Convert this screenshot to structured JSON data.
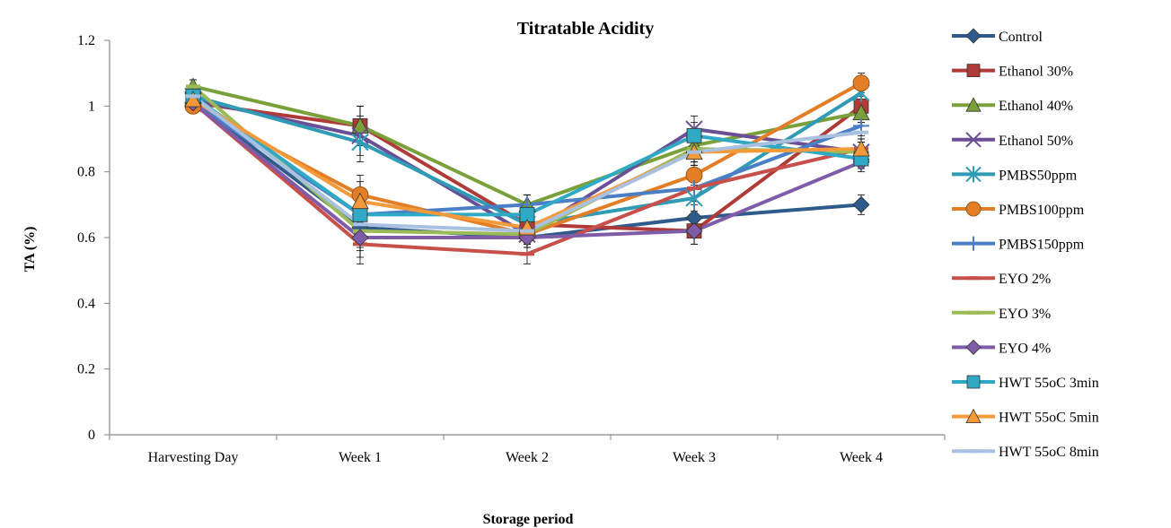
{
  "chart_data": {
    "type": "line",
    "title": "Titratable Acidity",
    "xlabel": "Storage period",
    "ylabel": "TA (%)",
    "ylim": [
      0,
      1.2
    ],
    "yticks": [
      "0",
      "0.2",
      "0.4",
      "0.6",
      "0.8",
      "1",
      "1.2"
    ],
    "categories": [
      "Harvesting Day",
      "Week 1",
      "Week 2",
      "Week 3",
      "Week 4"
    ],
    "legend_position": "right",
    "error_bars": true,
    "series": [
      {
        "name": "Control",
        "color": "#2e5b8c",
        "marker": "diamond",
        "values": [
          1.01,
          0.63,
          0.6,
          0.66,
          0.7
        ]
      },
      {
        "name": "Ethanol 30%",
        "color": "#b03a37",
        "marker": "square",
        "values": [
          1.01,
          0.94,
          0.64,
          0.62,
          1.0
        ]
      },
      {
        "name": "Ethanol 40%",
        "color": "#7aa03a",
        "marker": "triangle",
        "values": [
          1.06,
          0.94,
          0.7,
          0.88,
          0.98
        ]
      },
      {
        "name": "Ethanol 50%",
        "color": "#6a4f96",
        "marker": "x",
        "values": [
          1.02,
          0.91,
          0.61,
          0.93,
          0.86
        ]
      },
      {
        "name": "PMBS50ppm",
        "color": "#2f9bb5",
        "marker": "star",
        "values": [
          1.03,
          0.89,
          0.64,
          0.72,
          1.04
        ]
      },
      {
        "name": "PMBS100ppm",
        "color": "#e37e26",
        "marker": "circle",
        "values": [
          1.0,
          0.73,
          0.61,
          0.79,
          1.07
        ]
      },
      {
        "name": "PMBS150ppm",
        "color": "#4a7ec6",
        "marker": "plus",
        "values": [
          1.01,
          0.67,
          0.7,
          0.75,
          0.94
        ]
      },
      {
        "name": "EYO 2%",
        "color": "#c8504b",
        "marker": "dash",
        "values": [
          1.01,
          0.58,
          0.55,
          0.75,
          0.87
        ]
      },
      {
        "name": "EYO 3%",
        "color": "#9bbb59",
        "marker": "dash",
        "values": [
          1.06,
          0.62,
          0.61,
          0.87,
          0.86
        ]
      },
      {
        "name": "EYO 4%",
        "color": "#7f5ca8",
        "marker": "diamond",
        "values": [
          1.01,
          0.6,
          0.6,
          0.62,
          0.83
        ]
      },
      {
        "name": "HWT 55oC 3min",
        "color": "#2fa9c4",
        "marker": "square",
        "values": [
          1.03,
          0.67,
          0.67,
          0.91,
          0.84
        ]
      },
      {
        "name": "HWT 55oC 5min",
        "color": "#f59a3a",
        "marker": "triangle",
        "values": [
          1.02,
          0.71,
          0.63,
          0.86,
          0.87
        ]
      },
      {
        "name": "HWT 55oC 8min",
        "color": "#a9c1e0",
        "marker": "dash",
        "values": [
          1.03,
          0.64,
          0.62,
          0.86,
          0.92
        ]
      }
    ]
  }
}
